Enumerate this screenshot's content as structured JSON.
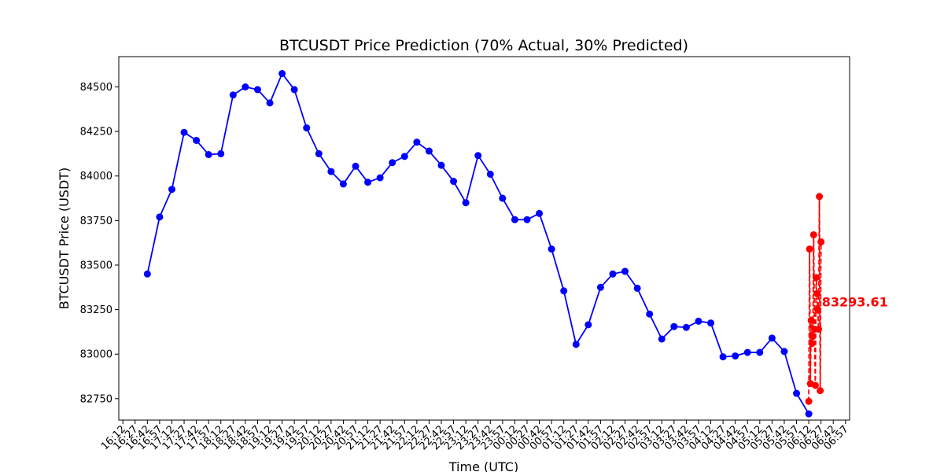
{
  "chart_data": {
    "type": "line",
    "title": "BTCUSDT Price Prediction (70% Actual, 30% Predicted)",
    "xlabel": "Time (UTC)",
    "ylabel": "BTCUSDT Price (USDT)",
    "ylim": [
      82630,
      84670
    ],
    "y_ticks": [
      82750,
      83000,
      83250,
      83500,
      83750,
      84000,
      84250,
      84500
    ],
    "x_range": [
      "16:07",
      "07:02"
    ],
    "x_tick_labels": [
      "16:12",
      "16:27",
      "16:42",
      "16:57",
      "17:12",
      "17:27",
      "17:42",
      "17:57",
      "18:12",
      "18:27",
      "18:42",
      "18:57",
      "19:12",
      "19:27",
      "19:42",
      "19:57",
      "20:12",
      "20:27",
      "20:42",
      "20:57",
      "21:12",
      "21:27",
      "21:42",
      "21:57",
      "22:12",
      "22:27",
      "22:42",
      "22:57",
      "23:12",
      "23:27",
      "23:42",
      "23:57",
      "00:12",
      "00:27",
      "00:42",
      "00:57",
      "01:12",
      "01:27",
      "01:42",
      "01:57",
      "02:12",
      "02:27",
      "02:42",
      "02:57",
      "03:12",
      "03:27",
      "03:42",
      "03:57",
      "04:12",
      "04:27",
      "04:42",
      "04:57",
      "05:12",
      "05:27",
      "05:42",
      "05:57",
      "06:12",
      "06:27",
      "06:42",
      "06:57"
    ],
    "grid": false,
    "series": [
      {
        "color": "#0000ff",
        "linestyle": "solid",
        "x": [
          "16:42",
          "16:57",
          "17:12",
          "17:27",
          "17:42",
          "17:57",
          "18:12",
          "18:27",
          "18:42",
          "18:57",
          "19:12",
          "19:27",
          "19:42",
          "19:57",
          "20:12",
          "20:27",
          "20:42",
          "20:57",
          "21:12",
          "21:27",
          "21:42",
          "21:57",
          "22:12",
          "22:27",
          "22:42",
          "22:57",
          "23:12",
          "23:27",
          "23:42",
          "23:57",
          "00:12",
          "00:27",
          "00:42",
          "00:57",
          "01:12",
          "01:27",
          "01:42",
          "01:57",
          "02:12",
          "02:27",
          "02:42",
          "02:57",
          "03:12",
          "03:27",
          "03:42",
          "03:57",
          "04:12",
          "04:27",
          "04:42",
          "04:57",
          "05:12",
          "05:27",
          "05:42",
          "05:57",
          "06:12"
        ],
        "values": [
          83450,
          83770,
          83925,
          84245,
          84200,
          84120,
          84125,
          84455,
          84500,
          84485,
          84410,
          84575,
          84485,
          84270,
          84125,
          84025,
          83955,
          84055,
          83965,
          83990,
          84075,
          84110,
          84190,
          84140,
          84060,
          83970,
          83850,
          84115,
          84010,
          83875,
          83755,
          83755,
          83790,
          83590,
          83355,
          83055,
          83165,
          83375,
          83450,
          83465,
          83370,
          83225,
          83085,
          83155,
          83150,
          83185,
          83175,
          82985,
          82990,
          83010,
          83010,
          83090,
          83015,
          82780,
          82665
        ]
      },
      {
        "color": "#ff0000",
        "linestyle": "dashed",
        "x": [
          "06:12",
          "06:13",
          "06:14",
          "06:15",
          "06:16",
          "06:17",
          "06:18",
          "06:19",
          "06:20",
          "06:21",
          "06:22",
          "06:23",
          "06:24",
          "06:25",
          "06:26",
          "06:27"
        ],
        "values": [
          82735,
          83590,
          82835,
          83190,
          83060,
          83100,
          83670,
          83140,
          82825,
          83430,
          83340,
          83250,
          83140,
          83885,
          82795,
          83630
        ]
      }
    ],
    "annotations": [
      {
        "text": "83293.61",
        "x": "06:28",
        "y": 83293.61,
        "color": "#ff0000"
      }
    ]
  }
}
